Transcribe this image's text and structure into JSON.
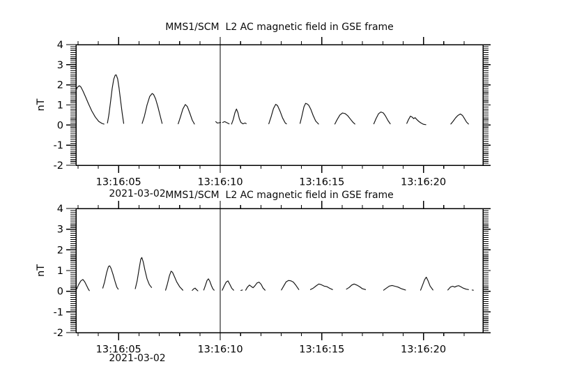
{
  "figure": {
    "background_color": "#ffffff",
    "line_color": "#000000",
    "date_label": "2021-03-02"
  },
  "chart_data": [
    {
      "type": "line",
      "title": "MMS1/SCM  L2 AC magnetic field in GSE frame",
      "ylabel": "nT",
      "ylim": [
        -2,
        4
      ],
      "yticks": [
        -2,
        -1,
        0,
        1,
        2,
        3,
        4
      ],
      "y_minor_step": 0.1,
      "x_range_seconds": [
        2.9,
        22.93
      ],
      "x_minor_step_seconds": 1,
      "xticks": [
        {
          "t": 5,
          "label": "13:16:05"
        },
        {
          "t": 10,
          "label": "13:16:10"
        },
        {
          "t": 15,
          "label": "13:16:15"
        },
        {
          "t": 20,
          "label": "13:16:20"
        }
      ],
      "date_label": "2021-03-02",
      "vline_t": 10,
      "grid": false,
      "legend": "none",
      "segments": [
        [
          [
            2.9,
            1.7
          ],
          [
            2.95,
            1.85
          ],
          [
            3.02,
            1.93
          ],
          [
            3.08,
            1.95
          ],
          [
            3.15,
            1.88
          ],
          [
            3.25,
            1.68
          ],
          [
            3.38,
            1.38
          ],
          [
            3.52,
            1.05
          ],
          [
            3.68,
            0.7
          ],
          [
            3.85,
            0.4
          ],
          [
            4.02,
            0.18
          ],
          [
            4.18,
            0.08
          ],
          [
            4.28,
            0.05
          ]
        ],
        [
          [
            4.45,
            0.1
          ],
          [
            4.52,
            0.5
          ],
          [
            4.6,
            1.15
          ],
          [
            4.68,
            1.8
          ],
          [
            4.76,
            2.28
          ],
          [
            4.83,
            2.48
          ],
          [
            4.88,
            2.5
          ],
          [
            4.95,
            2.3
          ],
          [
            5.02,
            1.85
          ],
          [
            5.1,
            1.2
          ],
          [
            5.18,
            0.55
          ],
          [
            5.25,
            0.08
          ]
        ],
        [
          [
            6.16,
            0.08
          ],
          [
            6.27,
            0.45
          ],
          [
            6.4,
            1.0
          ],
          [
            6.53,
            1.42
          ],
          [
            6.65,
            1.57
          ],
          [
            6.72,
            1.52
          ],
          [
            6.82,
            1.3
          ],
          [
            6.93,
            0.92
          ],
          [
            7.04,
            0.48
          ],
          [
            7.14,
            0.08
          ]
        ],
        [
          [
            7.93,
            0.06
          ],
          [
            8.04,
            0.4
          ],
          [
            8.16,
            0.8
          ],
          [
            8.28,
            1.02
          ],
          [
            8.38,
            0.92
          ],
          [
            8.5,
            0.6
          ],
          [
            8.62,
            0.25
          ],
          [
            8.73,
            0.05
          ]
        ],
        [
          [
            9.78,
            0.17
          ],
          [
            9.85,
            0.1
          ],
          [
            9.93,
            0.11
          ],
          [
            10.02,
            0.13
          ]
        ],
        [
          [
            10.12,
            0.13
          ],
          [
            10.22,
            0.17
          ],
          [
            10.32,
            0.12
          ],
          [
            10.44,
            0.06
          ]
        ],
        [
          [
            10.56,
            0.05
          ],
          [
            10.64,
            0.28
          ],
          [
            10.72,
            0.6
          ],
          [
            10.8,
            0.8
          ],
          [
            10.87,
            0.62
          ],
          [
            10.94,
            0.32
          ],
          [
            11.02,
            0.13
          ],
          [
            11.12,
            0.06
          ],
          [
            11.22,
            0.1
          ],
          [
            11.28,
            0.07
          ]
        ],
        [
          [
            12.39,
            0.06
          ],
          [
            12.5,
            0.4
          ],
          [
            12.62,
            0.82
          ],
          [
            12.73,
            1.03
          ],
          [
            12.82,
            0.97
          ],
          [
            12.94,
            0.7
          ],
          [
            13.07,
            0.35
          ],
          [
            13.2,
            0.1
          ],
          [
            13.26,
            0.06
          ]
        ],
        [
          [
            13.93,
            0.08
          ],
          [
            14.02,
            0.45
          ],
          [
            14.12,
            0.9
          ],
          [
            14.2,
            1.08
          ],
          [
            14.28,
            1.05
          ],
          [
            14.36,
            0.98
          ],
          [
            14.46,
            0.78
          ],
          [
            14.57,
            0.48
          ],
          [
            14.7,
            0.2
          ],
          [
            14.84,
            0.05
          ]
        ],
        [
          [
            15.64,
            0.05
          ],
          [
            15.76,
            0.28
          ],
          [
            15.89,
            0.5
          ],
          [
            16.02,
            0.6
          ],
          [
            16.15,
            0.57
          ],
          [
            16.28,
            0.46
          ],
          [
            16.42,
            0.28
          ],
          [
            16.54,
            0.13
          ],
          [
            16.63,
            0.05
          ]
        ],
        [
          [
            17.56,
            0.06
          ],
          [
            17.67,
            0.32
          ],
          [
            17.79,
            0.56
          ],
          [
            17.91,
            0.65
          ],
          [
            18.03,
            0.6
          ],
          [
            18.14,
            0.44
          ],
          [
            18.26,
            0.22
          ],
          [
            18.37,
            0.06
          ]
        ],
        [
          [
            19.18,
            0.08
          ],
          [
            19.27,
            0.28
          ],
          [
            19.36,
            0.44
          ],
          [
            19.44,
            0.4
          ],
          [
            19.52,
            0.32
          ],
          [
            19.59,
            0.37
          ],
          [
            19.67,
            0.28
          ],
          [
            19.77,
            0.18
          ],
          [
            19.88,
            0.1
          ],
          [
            20.0,
            0.04
          ],
          [
            20.12,
            0.02
          ]
        ],
        [
          [
            21.35,
            0.05
          ],
          [
            21.47,
            0.2
          ],
          [
            21.58,
            0.35
          ],
          [
            21.7,
            0.48
          ],
          [
            21.82,
            0.55
          ],
          [
            21.92,
            0.48
          ],
          [
            22.02,
            0.32
          ],
          [
            22.12,
            0.15
          ],
          [
            22.22,
            0.05
          ]
        ]
      ]
    },
    {
      "type": "line",
      "title": "MMS1/SCM  L2 AC magnetic field in GSE frame",
      "ylabel": "nT",
      "ylim": [
        -2,
        4
      ],
      "yticks": [
        -2,
        -1,
        0,
        1,
        2,
        3,
        4
      ],
      "y_minor_step": 0.1,
      "x_range_seconds": [
        2.9,
        22.93
      ],
      "x_minor_step_seconds": 1,
      "xticks": [
        {
          "t": 5,
          "label": "13:16:05"
        },
        {
          "t": 10,
          "label": "13:16:10"
        },
        {
          "t": 15,
          "label": "13:16:15"
        },
        {
          "t": 20,
          "label": "13:16:20"
        }
      ],
      "date_label": "2021-03-02",
      "vline_t": 10,
      "grid": false,
      "legend": "none",
      "segments": [
        [
          [
            2.93,
            0.1
          ],
          [
            3.03,
            0.32
          ],
          [
            3.14,
            0.5
          ],
          [
            3.24,
            0.57
          ],
          [
            3.33,
            0.46
          ],
          [
            3.42,
            0.28
          ],
          [
            3.51,
            0.1
          ],
          [
            3.56,
            0.03
          ]
        ],
        [
          [
            4.22,
            0.15
          ],
          [
            4.31,
            0.45
          ],
          [
            4.41,
            0.9
          ],
          [
            4.5,
            1.2
          ],
          [
            4.56,
            1.23
          ],
          [
            4.63,
            1.1
          ],
          [
            4.72,
            0.82
          ],
          [
            4.82,
            0.48
          ],
          [
            4.91,
            0.2
          ],
          [
            4.98,
            0.1
          ]
        ],
        [
          [
            5.82,
            0.12
          ],
          [
            5.91,
            0.5
          ],
          [
            6.01,
            1.1
          ],
          [
            6.09,
            1.55
          ],
          [
            6.14,
            1.63
          ],
          [
            6.21,
            1.42
          ],
          [
            6.3,
            1.0
          ],
          [
            6.4,
            0.6
          ],
          [
            6.51,
            0.32
          ],
          [
            6.62,
            0.18
          ]
        ],
        [
          [
            7.31,
            0.05
          ],
          [
            7.4,
            0.35
          ],
          [
            7.5,
            0.75
          ],
          [
            7.58,
            0.97
          ],
          [
            7.65,
            0.92
          ],
          [
            7.75,
            0.7
          ],
          [
            7.86,
            0.45
          ],
          [
            8.0,
            0.22
          ],
          [
            8.16,
            0.05
          ]
        ],
        [
          [
            8.62,
            0.04
          ],
          [
            8.69,
            0.11
          ],
          [
            8.76,
            0.15
          ],
          [
            8.83,
            0.08
          ],
          [
            8.9,
            0.02
          ]
        ],
        [
          [
            9.19,
            0.06
          ],
          [
            9.27,
            0.28
          ],
          [
            9.35,
            0.52
          ],
          [
            9.42,
            0.6
          ],
          [
            9.49,
            0.48
          ],
          [
            9.57,
            0.26
          ],
          [
            9.64,
            0.11
          ],
          [
            9.7,
            0.05
          ]
        ],
        [
          [
            10.1,
            0.05
          ],
          [
            10.19,
            0.24
          ],
          [
            10.29,
            0.44
          ],
          [
            10.38,
            0.5
          ],
          [
            10.47,
            0.34
          ],
          [
            10.57,
            0.14
          ],
          [
            10.66,
            0.05
          ]
        ],
        [
          [
            11.02,
            0.04
          ],
          [
            11.09,
            0.06
          ]
        ],
        [
          [
            11.25,
            0.05
          ],
          [
            11.34,
            0.2
          ],
          [
            11.44,
            0.3
          ],
          [
            11.54,
            0.22
          ],
          [
            11.62,
            0.17
          ],
          [
            11.71,
            0.27
          ],
          [
            11.81,
            0.4
          ],
          [
            11.91,
            0.44
          ],
          [
            12.01,
            0.34
          ],
          [
            12.11,
            0.15
          ],
          [
            12.21,
            0.05
          ]
        ],
        [
          [
            13.01,
            0.06
          ],
          [
            13.12,
            0.25
          ],
          [
            13.24,
            0.45
          ],
          [
            13.36,
            0.52
          ],
          [
            13.48,
            0.5
          ],
          [
            13.6,
            0.44
          ],
          [
            13.73,
            0.28
          ],
          [
            13.87,
            0.08
          ]
        ],
        [
          [
            14.44,
            0.08
          ],
          [
            14.58,
            0.15
          ],
          [
            14.72,
            0.26
          ],
          [
            14.85,
            0.35
          ],
          [
            14.97,
            0.32
          ],
          [
            15.11,
            0.25
          ],
          [
            15.25,
            0.22
          ],
          [
            15.39,
            0.14
          ],
          [
            15.53,
            0.08
          ]
        ],
        [
          [
            16.21,
            0.1
          ],
          [
            16.34,
            0.18
          ],
          [
            16.47,
            0.3
          ],
          [
            16.59,
            0.35
          ],
          [
            16.72,
            0.3
          ],
          [
            16.86,
            0.22
          ],
          [
            17.0,
            0.12
          ],
          [
            17.15,
            0.08
          ]
        ],
        [
          [
            18.04,
            0.05
          ],
          [
            18.18,
            0.15
          ],
          [
            18.32,
            0.25
          ],
          [
            18.46,
            0.28
          ],
          [
            18.6,
            0.24
          ],
          [
            18.75,
            0.2
          ],
          [
            18.92,
            0.12
          ],
          [
            19.12,
            0.06
          ]
        ],
        [
          [
            19.86,
            0.05
          ],
          [
            19.96,
            0.3
          ],
          [
            20.06,
            0.56
          ],
          [
            20.14,
            0.68
          ],
          [
            20.23,
            0.5
          ],
          [
            20.33,
            0.25
          ],
          [
            20.47,
            0.06
          ]
        ],
        [
          [
            21.2,
            0.06
          ],
          [
            21.33,
            0.2
          ],
          [
            21.44,
            0.24
          ],
          [
            21.54,
            0.2
          ],
          [
            21.64,
            0.25
          ],
          [
            21.74,
            0.27
          ],
          [
            21.85,
            0.21
          ],
          [
            21.96,
            0.15
          ],
          [
            22.1,
            0.1
          ],
          [
            22.22,
            0.08
          ]
        ],
        [
          [
            22.4,
            0.06
          ],
          [
            22.46,
            0.05
          ]
        ]
      ]
    }
  ]
}
